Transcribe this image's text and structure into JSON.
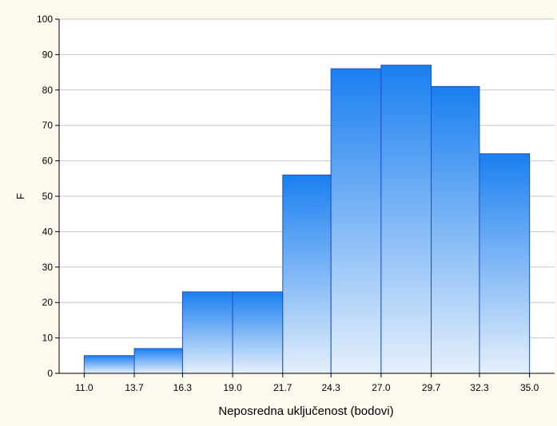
{
  "chart_data": {
    "type": "bar",
    "title": "",
    "xlabel": "Neposredna uključenost (bodovi)",
    "ylabel": "F",
    "x_ticks": [
      "11.0",
      "13.7",
      "16.3",
      "19.0",
      "21.7",
      "24.3",
      "27.0",
      "29.7",
      "32.3",
      "35.0"
    ],
    "bins": [
      {
        "from": 11.0,
        "to": 13.7,
        "value": 5
      },
      {
        "from": 13.7,
        "to": 16.3,
        "value": 7
      },
      {
        "from": 16.3,
        "to": 19.0,
        "value": 23
      },
      {
        "from": 19.0,
        "to": 21.7,
        "value": 23
      },
      {
        "from": 21.7,
        "to": 24.3,
        "value": 56
      },
      {
        "from": 24.3,
        "to": 27.0,
        "value": 86
      },
      {
        "from": 27.0,
        "to": 29.7,
        "value": 87
      },
      {
        "from": 29.7,
        "to": 32.3,
        "value": 81
      },
      {
        "from": 32.3,
        "to": 35.0,
        "value": 62
      }
    ],
    "y_ticks": [
      "0",
      "10",
      "20",
      "30",
      "40",
      "50",
      "60",
      "70",
      "80",
      "90",
      "100"
    ],
    "ylim": [
      0,
      100
    ],
    "grid": "horizontal",
    "colors": {
      "bar_top": "#1a7ff0",
      "bar_bottom": "#e6f0fb",
      "bar_edge": "#1f4fc8",
      "gridline": "#c8c8c8",
      "plot_bg": "#ffffff",
      "page_bg": "#fdf9ef"
    }
  }
}
